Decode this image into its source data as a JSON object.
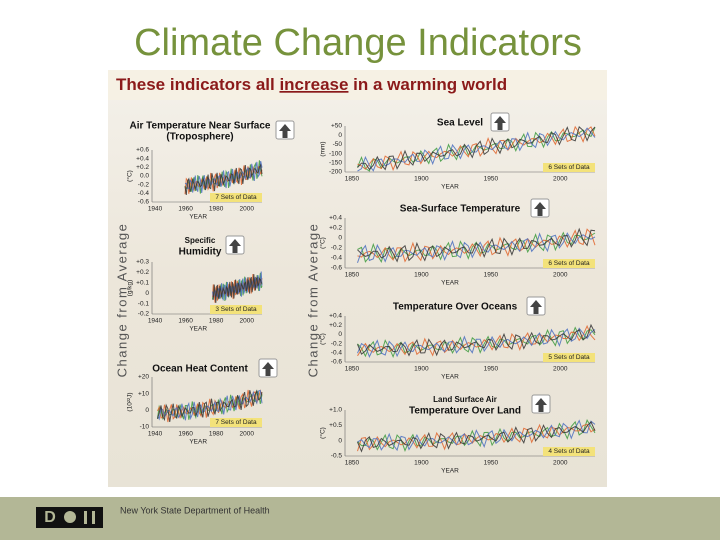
{
  "title": "Climate Change Indicators",
  "figure": {
    "heading": [
      "These indicators all ",
      "increase",
      " in a warming world"
    ],
    "side_label": "Change from Average",
    "panels": [
      {
        "title": [
          "Air Temperature Near Surface",
          "(Troposphere)"
        ],
        "unit": "(°C)",
        "yticks": [
          "+0.6",
          "+0.4",
          "+0.2",
          "0.0",
          "-0.2",
          "-0.4",
          "-0.6"
        ],
        "xticks": [
          "1940",
          "1960",
          "1980",
          "2000"
        ],
        "xlabel": "YEAR",
        "note": "7 Sets of Data"
      },
      {
        "title": [
          "Specific",
          "Humidity"
        ],
        "unit": "(g/kg)",
        "yticks": [
          "+0.3",
          "+0.2",
          "+0.1",
          "0",
          "-0.1",
          "-0.2"
        ],
        "xticks": [
          "1940",
          "1960",
          "1980",
          "2000"
        ],
        "xlabel": "YEAR",
        "note": "3 Sets of Data"
      },
      {
        "title": [
          "Ocean Heat Content"
        ],
        "unit": "(10²²J)",
        "yticks": [
          "+20",
          "+10",
          "0",
          "-10"
        ],
        "xticks": [
          "1940",
          "1960",
          "1980",
          "2000"
        ],
        "xlabel": "YEAR",
        "note": "7 Sets of Data"
      },
      {
        "title": [
          "Sea Level"
        ],
        "unit": "(mm)",
        "yticks": [
          "+50",
          "0",
          "-50",
          "-100",
          "-150",
          "-200"
        ],
        "xticks": [
          "1850",
          "1900",
          "1950",
          "2000"
        ],
        "xlabel": "YEAR",
        "note": "6 Sets of Data"
      },
      {
        "title": [
          "Sea-Surface Temperature"
        ],
        "unit": "(°C)",
        "yticks": [
          "+0.4",
          "+0.2",
          "0",
          "-0.2",
          "-0.4",
          "-0.6"
        ],
        "xticks": [
          "1850",
          "1900",
          "1950",
          "2000"
        ],
        "xlabel": "YEAR",
        "note": "6 Sets of Data"
      },
      {
        "title": [
          "Temperature Over Oceans"
        ],
        "unit": "(°C)",
        "yticks": [
          "+0.4",
          "+0.2",
          "0",
          "-0.2",
          "-0.4",
          "-0.6"
        ],
        "xticks": [
          "1850",
          "1900",
          "1950",
          "2000"
        ],
        "xlabel": "YEAR",
        "note": "5 Sets of Data"
      },
      {
        "title": [
          "Land Surface Air",
          "Temperature Over Land"
        ],
        "unit": "(°C)",
        "yticks": [
          "+1.0",
          "+0.5",
          "0",
          "-0.5"
        ],
        "xticks": [
          "1850",
          "1900",
          "1950",
          "2000"
        ],
        "xlabel": "YEAR",
        "note": "4 Sets of Data"
      }
    ]
  },
  "footer": {
    "logo": "D",
    "org": "New York State Department of Health"
  }
}
